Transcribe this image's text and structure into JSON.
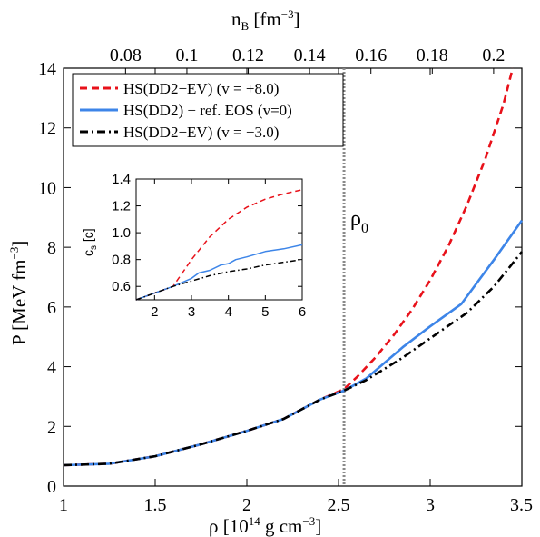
{
  "chart_data": [
    {
      "type": "line",
      "xlabel_main": "ρ",
      "xlabel_unit": "[10",
      "xlabel_exp": "14",
      "xlabel_tail": " g cm",
      "xlabel_tail_exp": "−3",
      "xlabel_close": "]",
      "ylabel_main": "P  [MeV fm",
      "ylabel_exp": "−3",
      "ylabel_close": "]",
      "top_label_main": "n",
      "top_label_sub": "B",
      "top_label_unit": "  [fm",
      "top_label_exp": "−3",
      "top_label_close": "]",
      "xlim": [
        1,
        3.5
      ],
      "ylim": [
        0,
        14
      ],
      "xticks": [
        "1",
        "1.5",
        "2",
        "2.5",
        "3",
        "3.5"
      ],
      "yticks": [
        "0",
        "2",
        "4",
        "6",
        "8",
        "10",
        "12",
        "14"
      ],
      "top_ticks": [
        "0.08",
        "0.1",
        "0.12",
        "0.14",
        "0.16",
        "0.18",
        "0.2"
      ],
      "top_tick_values": [
        0.08,
        0.1,
        0.12,
        0.14,
        0.16,
        0.18,
        0.2
      ],
      "top_axis_rho_per_nB": 16.73,
      "vline_x": 2.53,
      "vline_label": "ρ",
      "vline_label_sub": "0",
      "legend_position": "top-left",
      "series": [
        {
          "name": "HS(DD2−EV) (v = +8.0)",
          "color": "#e8111a",
          "style": "dashed",
          "x": [
            1.0,
            1.25,
            1.5,
            1.75,
            2.0,
            2.2,
            2.4,
            2.53,
            2.6,
            2.7,
            2.8,
            2.9,
            3.0,
            3.1,
            3.2,
            3.3,
            3.4,
            3.45
          ],
          "y": [
            0.7,
            0.75,
            1.0,
            1.4,
            1.85,
            2.25,
            2.9,
            3.25,
            3.65,
            4.3,
            5.05,
            5.9,
            6.9,
            8.05,
            9.4,
            10.95,
            12.8,
            14.0
          ]
        },
        {
          "name": "HS(DD2) − ref. EOS (v=0)",
          "color": "#3d85e8",
          "style": "solid",
          "x": [
            1.0,
            1.25,
            1.5,
            1.75,
            2.0,
            2.2,
            2.4,
            2.53,
            2.65,
            2.85,
            3.0,
            3.17,
            3.35,
            3.5
          ],
          "y": [
            0.7,
            0.75,
            1.0,
            1.4,
            1.85,
            2.25,
            2.9,
            3.2,
            3.6,
            4.65,
            5.35,
            6.1,
            7.6,
            8.9
          ]
        },
        {
          "name": "HS(DD2−EV) (v = −3.0)",
          "color": "#000000",
          "style": "dashdot",
          "x": [
            1.0,
            1.25,
            1.5,
            1.75,
            2.0,
            2.2,
            2.4,
            2.53,
            2.65,
            2.85,
            3.0,
            3.2,
            3.35,
            3.5
          ],
          "y": [
            0.7,
            0.75,
            1.0,
            1.4,
            1.85,
            2.25,
            2.9,
            3.2,
            3.55,
            4.3,
            4.95,
            5.8,
            6.7,
            7.85
          ]
        }
      ]
    },
    {
      "type": "line",
      "inset": true,
      "ylabel_main": "c",
      "ylabel_sub": "s",
      "ylabel_unit": " [c]",
      "xlim": [
        1.5,
        6
      ],
      "ylim": [
        0.5,
        1.4
      ],
      "xticks": [
        "2",
        "3",
        "4",
        "5",
        "6"
      ],
      "yticks": [
        "0.6",
        "0.8",
        "1.0",
        "1.2",
        "1.4"
      ],
      "series": [
        {
          "name": "HS(DD2−EV) (v = +8.0)",
          "color": "#e8111a",
          "style": "dashed",
          "x": [
            1.5,
            2.0,
            2.5,
            2.8,
            3.0,
            3.5,
            4.0,
            4.5,
            5.0,
            5.5,
            6.0
          ],
          "y": [
            0.5,
            0.55,
            0.6,
            0.72,
            0.8,
            0.97,
            1.1,
            1.19,
            1.25,
            1.29,
            1.32
          ]
        },
        {
          "name": "HS(DD2) − ref. EOS (v=0)",
          "color": "#3d85e8",
          "style": "solid",
          "x": [
            1.5,
            2.0,
            2.5,
            3.0,
            3.2,
            3.5,
            3.8,
            4.0,
            4.2,
            4.5,
            5.0,
            5.5,
            6.0
          ],
          "y": [
            0.5,
            0.55,
            0.6,
            0.66,
            0.7,
            0.72,
            0.76,
            0.77,
            0.8,
            0.82,
            0.86,
            0.88,
            0.91
          ]
        },
        {
          "name": "HS(DD2−EV) (v = −3.0)",
          "color": "#000000",
          "style": "dashdot",
          "x": [
            1.5,
            2.0,
            2.5,
            3.0,
            3.5,
            4.0,
            4.5,
            5.0,
            5.5,
            6.0
          ],
          "y": [
            0.5,
            0.55,
            0.6,
            0.64,
            0.68,
            0.71,
            0.73,
            0.76,
            0.78,
            0.8
          ]
        }
      ]
    }
  ]
}
